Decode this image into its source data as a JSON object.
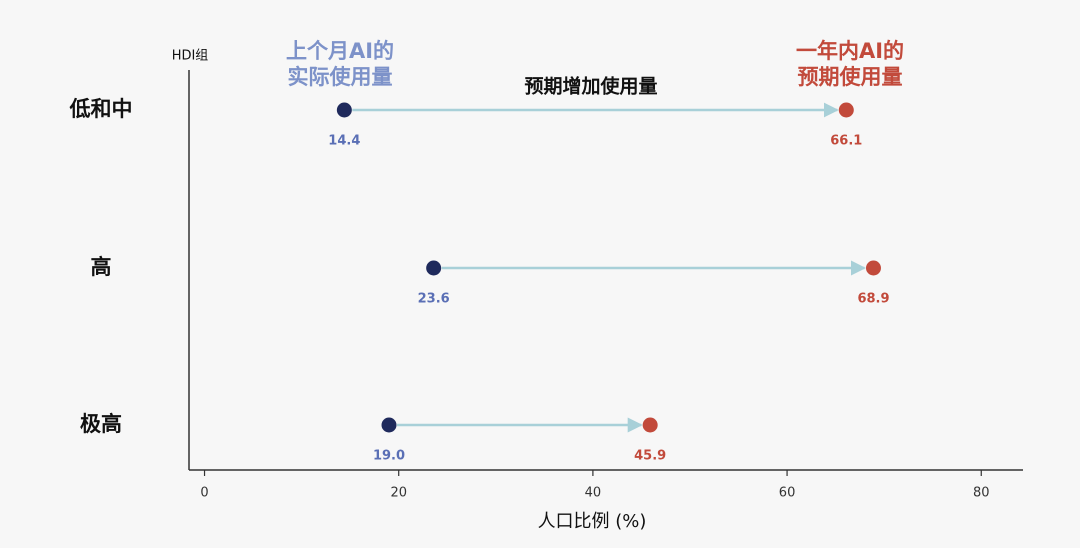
{
  "chart_data": {
    "type": "dumbbell",
    "y_label": "HDI组",
    "x_label": "人口比例 (%)",
    "annotation": "预期增加使用量",
    "categories": [
      "低和中",
      "高",
      "极高"
    ],
    "series": [
      {
        "name": "上个月AI的\n实际使用量",
        "color": "#1f2a5c",
        "values": [
          14.4,
          23.6,
          19.0
        ],
        "value_labels": [
          "14.4",
          "23.6",
          "19.0"
        ]
      },
      {
        "name": "一年内AI的\n预期使用量",
        "color": "#c24a3b",
        "values": [
          66.1,
          68.9,
          45.9
        ],
        "value_labels": [
          "66.1",
          "68.9",
          "45.9"
        ]
      }
    ],
    "xlim": [
      -1.6,
      84.3
    ],
    "xticks": [
      0,
      20,
      40,
      60,
      80
    ],
    "grid": false
  }
}
